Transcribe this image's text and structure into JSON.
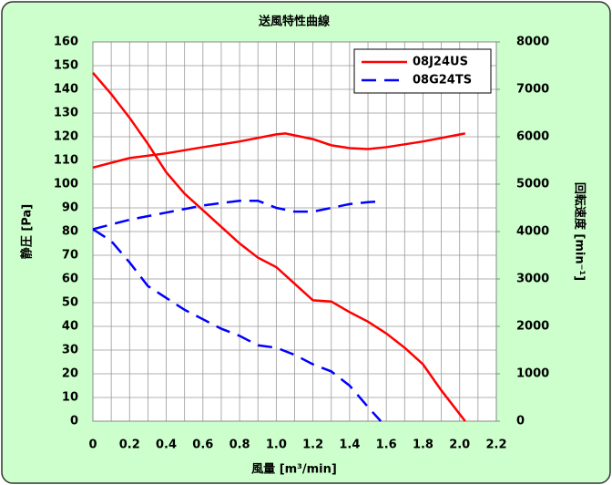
{
  "chart_data": {
    "type": "line",
    "title": "送風特性曲線",
    "xlabel": "風量 [m³/min]",
    "ylabel": "静圧 [Pa]",
    "y2label": "回転速度 [min⁻¹]",
    "xlim": [
      0,
      2.2
    ],
    "xticks": [
      0,
      0.2,
      0.4,
      0.6,
      0.8,
      {
        "value": 1.0,
        "label": "1.0"
      },
      1.2,
      1.4,
      1.6,
      1.8,
      {
        "value": 2.0,
        "label": "2.0"
      },
      2.2
    ],
    "x_minor_grid": [
      0.1,
      0.3,
      0.5,
      0.7,
      0.9,
      1.1,
      1.3,
      1.5,
      1.7,
      1.9,
      2.1
    ],
    "ylim": [
      0,
      160
    ],
    "yticks": [
      0,
      10,
      20,
      30,
      40,
      50,
      60,
      70,
      80,
      90,
      100,
      110,
      120,
      130,
      140,
      150,
      160
    ],
    "y2lim": [
      0,
      8000
    ],
    "y2ticks": [
      0,
      1000,
      2000,
      3000,
      4000,
      5000,
      6000,
      7000,
      8000
    ],
    "grid": true,
    "legend": "upper right",
    "series": [
      {
        "name": "08J24US",
        "color": "#ff0000",
        "dash": "solid",
        "axis": "y",
        "x": [
          0,
          0.1,
          0.2,
          0.3,
          0.4,
          0.5,
          0.6,
          0.7,
          0.8,
          0.9,
          1.0,
          1.1,
          1.2,
          1.3,
          1.4,
          1.5,
          1.6,
          1.7,
          1.8,
          1.9,
          2.0,
          2.03
        ],
        "values": [
          147,
          138,
          128,
          117,
          105,
          96,
          89,
          82,
          75,
          69,
          65,
          58,
          51,
          50.5,
          46,
          42,
          37,
          31,
          24,
          13,
          3,
          0
        ]
      },
      {
        "color": "#ff0000",
        "dash": "solid",
        "axis": "y2",
        "x": [
          0,
          0.2,
          0.4,
          0.6,
          0.8,
          1.0,
          1.05,
          1.2,
          1.3,
          1.4,
          1.5,
          1.6,
          1.8,
          2.03
        ],
        "values": [
          5350,
          5550,
          5650,
          5780,
          5900,
          6050,
          6070,
          5950,
          5820,
          5760,
          5740,
          5780,
          5900,
          6070
        ]
      },
      {
        "name": "08G24TS",
        "color": "#0000ff",
        "dash": "dashed",
        "axis": "y",
        "x": [
          0,
          0.1,
          0.2,
          0.3,
          0.4,
          0.5,
          0.6,
          0.7,
          0.8,
          0.9,
          1.0,
          1.1,
          1.2,
          1.3,
          1.4,
          1.5,
          1.57
        ],
        "values": [
          81,
          76,
          67,
          57,
          52,
          47,
          43,
          39,
          36,
          32,
          31,
          28,
          24,
          21,
          15,
          6,
          0
        ]
      },
      {
        "color": "#0000ff",
        "dash": "dashed",
        "axis": "y2",
        "x": [
          0,
          0.2,
          0.4,
          0.6,
          0.8,
          0.9,
          1.0,
          1.1,
          1.2,
          1.3,
          1.4,
          1.5,
          1.58
        ],
        "values": [
          4050,
          4250,
          4400,
          4550,
          4650,
          4650,
          4500,
          4420,
          4420,
          4500,
          4580,
          4620,
          4640
        ]
      }
    ]
  }
}
